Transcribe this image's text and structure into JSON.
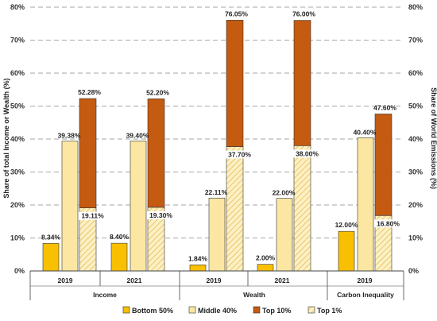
{
  "chart_data": {
    "type": "bar",
    "ylabel_left": "Share of total Income or Wealth (%)",
    "ylabel_right": "Share of World Emissions (%)",
    "ylim": [
      0,
      80
    ],
    "yticks": [
      "0%",
      "10%",
      "20%",
      "30%",
      "40%",
      "50%",
      "60%",
      "70%",
      "80%"
    ],
    "grid": "dashed-horizontal",
    "legend_position": "bottom",
    "colors": {
      "bottom50": "#f8c000",
      "middle40": "#fbe6a2",
      "top10": "#c55a11",
      "top1_fill": "#fdf0c4",
      "top1_hatch": "#e3bd55",
      "grid": "#a6a6a6",
      "axis": "#444444"
    },
    "groups": [
      {
        "name": "Income",
        "years": [
          {
            "year": "2019",
            "bottom50": 8.34,
            "middle40": 39.38,
            "top10": 52.28,
            "top1": 19.11,
            "labels": {
              "bottom50": "8.34%",
              "middle40": "39.38%",
              "top10": "52.28%",
              "top1": "19.11%"
            }
          },
          {
            "year": "2021",
            "bottom50": 8.4,
            "middle40": 39.4,
            "top10": 52.2,
            "top1": 19.3,
            "labels": {
              "bottom50": "8.40%",
              "middle40": "39.40%",
              "top10": "52.20%",
              "top1": "19.30%"
            }
          }
        ]
      },
      {
        "name": "Wealth",
        "years": [
          {
            "year": "2019",
            "bottom50": 1.84,
            "middle40": 22.11,
            "top10": 76.05,
            "top1": 37.7,
            "labels": {
              "bottom50": "1.84%",
              "middle40": "22.11%",
              "top10": "76.05%",
              "top1": "37.70%"
            }
          },
          {
            "year": "2021",
            "bottom50": 2.0,
            "middle40": 22.0,
            "top10": 76.0,
            "top1": 38.0,
            "labels": {
              "bottom50": "2.00%",
              "middle40": "22.00%",
              "top10": "76.00%",
              "top1": "38.00%"
            }
          }
        ]
      },
      {
        "name": "Carbon Inequality",
        "years": [
          {
            "year": "2019",
            "bottom50": 12.0,
            "middle40": 40.4,
            "top10": 47.6,
            "top1": 16.8,
            "labels": {
              "bottom50": "12.00%",
              "middle40": "40.40%",
              "top10": "47.60%",
              "top1": "16.80%"
            }
          }
        ]
      }
    ],
    "legend": [
      {
        "key": "bottom50",
        "label": "Bottom 50%"
      },
      {
        "key": "middle40",
        "label": "Middle 40%"
      },
      {
        "key": "top10",
        "label": "Top 10%"
      },
      {
        "key": "top1",
        "label": "Top 1%"
      }
    ]
  }
}
